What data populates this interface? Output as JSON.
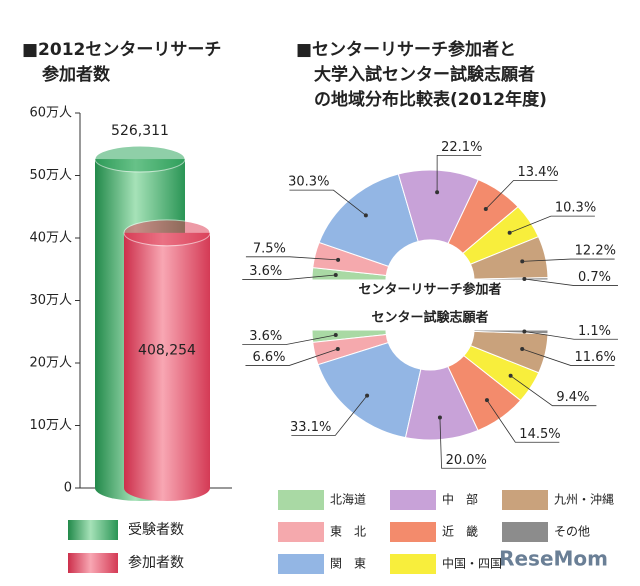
{
  "chart_data": [
    {
      "type": "bar",
      "title": [
        "■2012センターリサーチ",
        "参加者数"
      ],
      "categories": [
        null
      ],
      "series": [
        {
          "name": "受験者数",
          "color": "#35a862",
          "values": [
            526311
          ],
          "value_labels": [
            "526,311"
          ]
        },
        {
          "name": "参加者数",
          "color": "#e0485f",
          "values": [
            408254
          ],
          "value_labels": [
            "408,254"
          ]
        }
      ],
      "ylim": [
        0,
        600000
      ],
      "yticks": [
        0,
        {
          "value": 100000,
          "label": "10万人"
        },
        {
          "value": 200000,
          "label": "20万人"
        },
        {
          "value": 300000,
          "label": "30万人"
        },
        {
          "value": 400000,
          "label": "40万人"
        },
        {
          "value": 500000,
          "label": "50万人"
        },
        {
          "value": 600000,
          "label": "60万人"
        }
      ]
    },
    {
      "type": "pie",
      "title": [
        "■センターリサーチ参加者と",
        "大学入試センター試験志願者",
        "の地域分布比較表(2012年度)"
      ],
      "categories": [
        "北海道",
        "東　北",
        "関　東",
        "中　部",
        "近　畿",
        "中国・四国",
        "九州・沖縄",
        "その他"
      ],
      "colors": [
        "#a9d9a4",
        "#f5a9ad",
        "#93b6e4",
        "#c8a2d8",
        "#f38b6c",
        "#f8ee3c",
        "#c9a27c",
        "#8c8c8c"
      ],
      "series": [
        {
          "name": "センターリサーチ参加者",
          "values": [
            3.6,
            7.5,
            30.3,
            22.1,
            13.4,
            10.3,
            12.2,
            0.7
          ],
          "value_labels": [
            "3.6%",
            "7.5%",
            "30.3%",
            "22.1%",
            "13.4%",
            "10.3%",
            "12.2%",
            "0.7%"
          ]
        },
        {
          "name": "センター試験志願者",
          "values": [
            3.6,
            6.6,
            33.1,
            20,
            14.5,
            9.4,
            11.6,
            1.1
          ],
          "value_labels": [
            "3.6%",
            "6.6%",
            "33.1%",
            "20.0%",
            "14.5%",
            "9.4%",
            "11.6%",
            "1.1%"
          ]
        }
      ]
    }
  ],
  "watermark": "ReseMom"
}
